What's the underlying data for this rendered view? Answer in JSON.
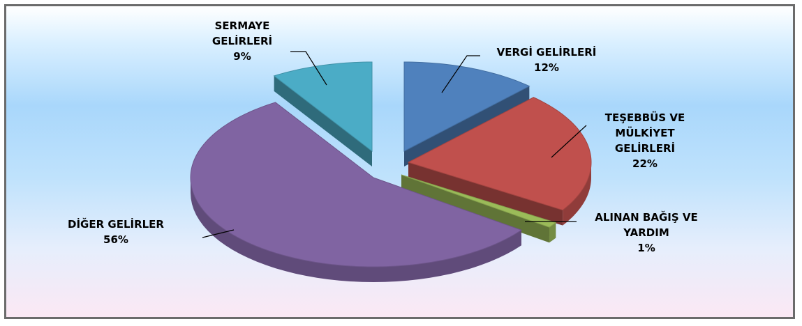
{
  "chart_data": {
    "type": "pie",
    "style": "3d-exploded",
    "slices": [
      {
        "name": "VERGİ GELİRLERİ",
        "value": 12,
        "label": "12%",
        "color": "#4f81bd",
        "label_lines": [
          "VERGİ GELİRLERİ",
          "12%"
        ]
      },
      {
        "name": "TEŞEBBÜS VE MÜLKİYET GELİRLERİ",
        "value": 22,
        "label": "22%",
        "color": "#c0504d",
        "label_lines": [
          "TEŞEBBÜS VE",
          "MÜLKİYET",
          "GELİRLERİ",
          "22%"
        ]
      },
      {
        "name": "ALINAN BAĞIŞ VE YARDIM",
        "value": 1,
        "label": "1%",
        "color": "#9bbb59",
        "label_lines": [
          "ALINAN BAĞIŞ VE",
          "YARDIM",
          "1%"
        ]
      },
      {
        "name": "DİĞER GELİRLER",
        "value": 56,
        "label": "56%",
        "color": "#8064a2",
        "label_lines": [
          "DİĞER GELİRLER",
          "56%"
        ]
      },
      {
        "name": "SERMAYE GELİRLERİ",
        "value": 9,
        "label": "9%",
        "color": "#4bacc6",
        "label_lines": [
          "SERMAYE",
          "GELİRLERİ",
          "9%"
        ]
      }
    ]
  }
}
